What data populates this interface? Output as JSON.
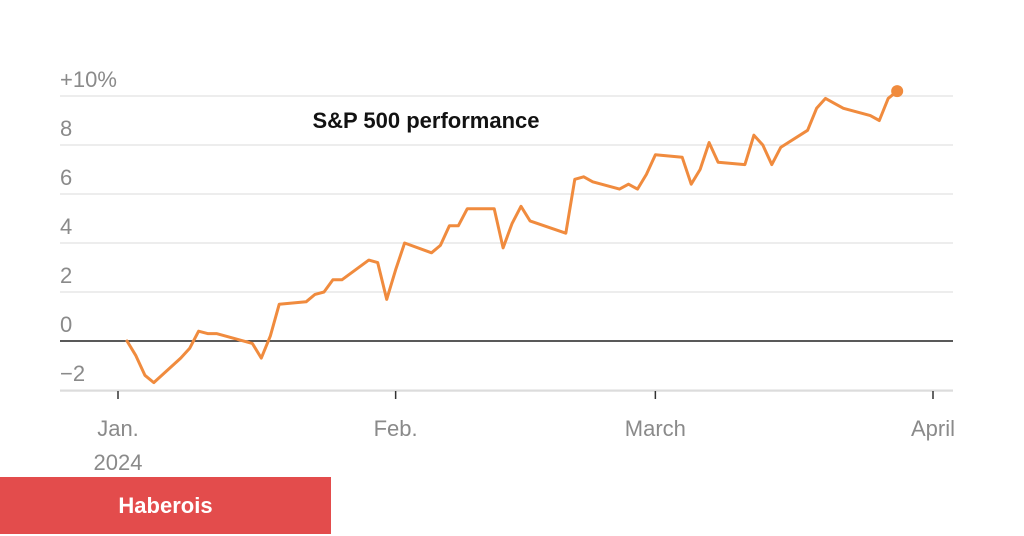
{
  "chart_data": {
    "type": "line",
    "title": "S&P 500 performance",
    "xlabel": "",
    "ylabel": "",
    "ylim": [
      -2,
      10
    ],
    "yticks": [
      -2,
      0,
      2,
      4,
      6,
      8,
      10
    ],
    "ytick_labels": [
      "−2",
      "0",
      "2",
      "4",
      "6",
      "8",
      "+10%"
    ],
    "xlim": [
      "2024-01-01",
      "2024-04-01"
    ],
    "xticks": [
      "2024-01-01",
      "2024-02-01",
      "2024-03-01",
      "2024-04-01"
    ],
    "xtick_labels": [
      [
        "Jan.",
        "2024"
      ],
      [
        "Feb."
      ],
      [
        "March"
      ],
      [
        "April"
      ]
    ],
    "grid": true,
    "line_color": "#f08b3e",
    "zero_line": true,
    "series": [
      {
        "x": [
          "2024-01-02",
          "2024-01-03",
          "2024-01-04",
          "2024-01-05",
          "2024-01-08",
          "2024-01-09",
          "2024-01-10",
          "2024-01-11",
          "2024-01-12",
          "2024-01-16",
          "2024-01-17",
          "2024-01-18",
          "2024-01-19",
          "2024-01-22",
          "2024-01-23",
          "2024-01-24",
          "2024-01-25",
          "2024-01-26",
          "2024-01-29",
          "2024-01-30",
          "2024-01-31",
          "2024-02-01",
          "2024-02-02",
          "2024-02-05",
          "2024-02-06",
          "2024-02-07",
          "2024-02-08",
          "2024-02-09",
          "2024-02-12",
          "2024-02-13",
          "2024-02-14",
          "2024-02-15",
          "2024-02-16",
          "2024-02-20",
          "2024-02-21",
          "2024-02-22",
          "2024-02-23",
          "2024-02-26",
          "2024-02-27",
          "2024-02-28",
          "2024-02-29",
          "2024-03-01",
          "2024-03-04",
          "2024-03-05",
          "2024-03-06",
          "2024-03-07",
          "2024-03-08",
          "2024-03-11",
          "2024-03-12",
          "2024-03-13",
          "2024-03-14",
          "2024-03-15",
          "2024-03-18",
          "2024-03-19",
          "2024-03-20",
          "2024-03-21",
          "2024-03-22",
          "2024-03-25",
          "2024-03-26",
          "2024-03-27",
          "2024-03-28"
        ],
        "values": [
          0.0,
          -0.6,
          -1.4,
          -1.7,
          -0.7,
          -0.3,
          0.4,
          0.3,
          0.3,
          -0.1,
          -0.7,
          0.2,
          1.5,
          1.6,
          1.9,
          2.0,
          2.5,
          2.5,
          3.3,
          3.2,
          1.7,
          2.9,
          4.0,
          3.6,
          3.9,
          4.7,
          4.7,
          5.4,
          5.4,
          3.8,
          4.8,
          5.5,
          4.9,
          4.4,
          6.6,
          6.7,
          6.5,
          6.2,
          6.4,
          6.2,
          6.8,
          7.6,
          7.5,
          6.4,
          7.0,
          8.1,
          7.3,
          7.2,
          8.4,
          8.0,
          7.2,
          7.9,
          8.6,
          9.5,
          9.9,
          9.7,
          9.5,
          9.2,
          9.0,
          9.9,
          10.2
        ]
      }
    ]
  },
  "footer": {
    "label": "Haberois"
  }
}
